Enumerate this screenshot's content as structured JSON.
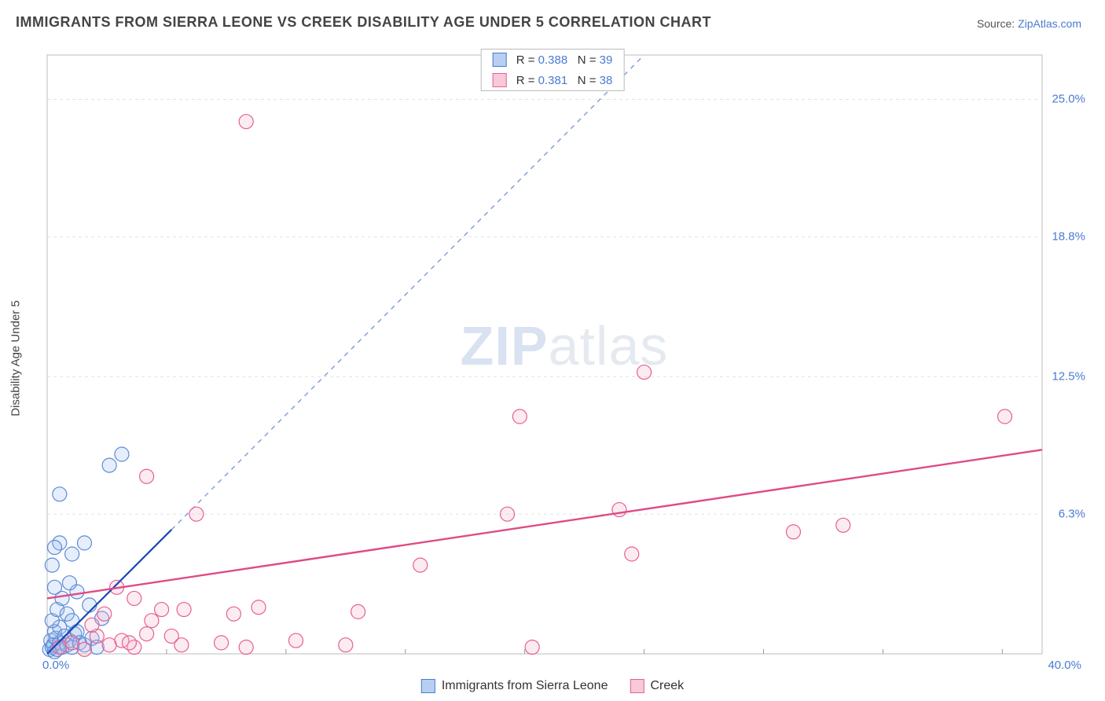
{
  "title": "IMMIGRANTS FROM SIERRA LEONE VS CREEK DISABILITY AGE UNDER 5 CORRELATION CHART",
  "source_label": "Source: ",
  "source_value": "ZipAtlas.com",
  "ylabel": "Disability Age Under 5",
  "watermark": {
    "a": "ZIP",
    "b": "atlas"
  },
  "chart": {
    "type": "scatter",
    "background_color": "#ffffff",
    "grid_color": "#e3e3e3",
    "axis_color": "#bdbdbd",
    "xlim": [
      0,
      40
    ],
    "ylim": [
      0,
      27
    ],
    "xtick_labels": [
      {
        "v": 0,
        "t": "0.0%"
      },
      {
        "v": 40,
        "t": "40.0%"
      }
    ],
    "ytick_labels": [
      {
        "v": 6.3,
        "t": "6.3%"
      },
      {
        "v": 12.5,
        "t": "12.5%"
      },
      {
        "v": 18.8,
        "t": "18.8%"
      },
      {
        "v": 25.0,
        "t": "25.0%"
      }
    ],
    "gridlines_y": [
      6.3,
      12.5,
      18.8,
      25.0
    ],
    "gridlines_x_minor": [
      4.8,
      9.6,
      14.4,
      19.2,
      24.0,
      28.8,
      33.6,
      38.4
    ],
    "marker_radius": 9,
    "marker_stroke_width": 1.2,
    "marker_fill_opacity": 0.25,
    "series": [
      {
        "name": "Immigrants from Sierra Leone",
        "color_stroke": "#5b8bd6",
        "color_fill": "#9cbdf0",
        "swatch_fill": "#b8cff3",
        "swatch_stroke": "#4a7bd0",
        "R": "0.388",
        "N": "39",
        "fit_line": {
          "x1": 0,
          "y1": 0,
          "x2": 5.0,
          "y2": 5.6,
          "color": "#1949b3",
          "width": 2.2,
          "dash": ""
        },
        "fit_line_ext": {
          "x1": 5.0,
          "y1": 5.6,
          "x2": 24,
          "y2": 27,
          "color": "#7a9ad6",
          "width": 1.4,
          "dash": "6,6"
        },
        "points": [
          [
            0.1,
            0.2
          ],
          [
            0.2,
            0.3
          ],
          [
            0.3,
            0.1
          ],
          [
            0.15,
            0.6
          ],
          [
            0.25,
            0.4
          ],
          [
            0.35,
            0.7
          ],
          [
            0.4,
            0.2
          ],
          [
            0.5,
            0.5
          ],
          [
            0.6,
            0.3
          ],
          [
            0.3,
            1.0
          ],
          [
            0.5,
            1.2
          ],
          [
            0.2,
            1.5
          ],
          [
            0.7,
            0.8
          ],
          [
            0.8,
            0.4
          ],
          [
            0.9,
            0.6
          ],
          [
            1.0,
            0.3
          ],
          [
            1.1,
            0.9
          ],
          [
            0.4,
            2.0
          ],
          [
            0.6,
            2.5
          ],
          [
            0.8,
            1.8
          ],
          [
            1.0,
            1.5
          ],
          [
            1.2,
            1.0
          ],
          [
            1.3,
            0.5
          ],
          [
            1.5,
            0.4
          ],
          [
            1.8,
            0.7
          ],
          [
            2.0,
            0.3
          ],
          [
            0.3,
            3.0
          ],
          [
            0.2,
            4.0
          ],
          [
            0.5,
            5.0
          ],
          [
            1.5,
            5.0
          ],
          [
            0.3,
            4.8
          ],
          [
            1.0,
            4.5
          ],
          [
            0.5,
            7.2
          ],
          [
            2.5,
            8.5
          ],
          [
            3.0,
            9.0
          ],
          [
            1.2,
            2.8
          ],
          [
            2.2,
            1.6
          ],
          [
            0.9,
            3.2
          ],
          [
            1.7,
            2.2
          ]
        ]
      },
      {
        "name": "Creek",
        "color_stroke": "#e85f93",
        "color_fill": "#f5b4cc",
        "swatch_fill": "#f7c9da",
        "swatch_stroke": "#e85f93",
        "R": "0.381",
        "N": "38",
        "fit_line": {
          "x1": 0,
          "y1": 2.5,
          "x2": 40,
          "y2": 9.2,
          "color": "#e04a85",
          "width": 2.4,
          "dash": ""
        },
        "points": [
          [
            0.5,
            0.3
          ],
          [
            1.0,
            0.5
          ],
          [
            1.5,
            0.2
          ],
          [
            2.0,
            0.8
          ],
          [
            2.5,
            0.4
          ],
          [
            3.0,
            0.6
          ],
          [
            3.5,
            0.3
          ],
          [
            4.0,
            0.9
          ],
          [
            3.3,
            0.5
          ],
          [
            1.8,
            1.3
          ],
          [
            2.3,
            1.8
          ],
          [
            4.2,
            1.5
          ],
          [
            5.0,
            0.8
          ],
          [
            5.4,
            0.4
          ],
          [
            4.6,
            2.0
          ],
          [
            5.5,
            2.0
          ],
          [
            7.0,
            0.5
          ],
          [
            7.5,
            1.8
          ],
          [
            8.0,
            0.3
          ],
          [
            8.5,
            2.1
          ],
          [
            12.0,
            0.4
          ],
          [
            12.5,
            1.9
          ],
          [
            10.0,
            0.6
          ],
          [
            6.0,
            6.3
          ],
          [
            4.0,
            8.0
          ],
          [
            3.5,
            2.5
          ],
          [
            2.8,
            3.0
          ],
          [
            15.0,
            4.0
          ],
          [
            18.5,
            6.3
          ],
          [
            19.0,
            10.7
          ],
          [
            19.5,
            0.3
          ],
          [
            23.0,
            6.5
          ],
          [
            23.5,
            4.5
          ],
          [
            24.0,
            12.7
          ],
          [
            30.0,
            5.5
          ],
          [
            32.0,
            5.8
          ],
          [
            38.5,
            10.7
          ],
          [
            8.0,
            24.0
          ]
        ]
      }
    ]
  },
  "legend_bottom": [
    {
      "label": "Immigrants from Sierra Leone",
      "fill": "#b8cff3",
      "stroke": "#4a7bd0"
    },
    {
      "label": "Creek",
      "fill": "#f7c9da",
      "stroke": "#e85f93"
    }
  ]
}
